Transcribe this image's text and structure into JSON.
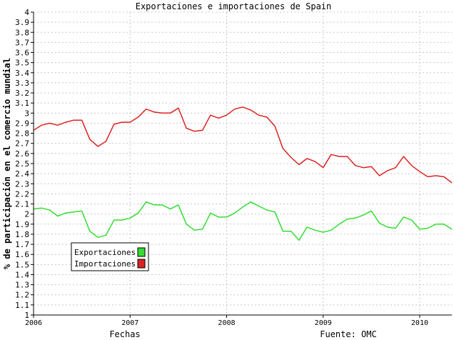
{
  "chart_data": {
    "type": "line",
    "title": "Exportaciones e importaciones de Spain",
    "xlabel": "Fechas",
    "ylabel": "% de participación en el comercio mundial",
    "source": "Fuente: OMC",
    "x_tick_labels": [
      "2006",
      "2007",
      "2008",
      "2009",
      "2010"
    ],
    "x_tick_positions": [
      2006,
      2007,
      2008,
      2009,
      2010
    ],
    "xlim": [
      2006,
      2010.333
    ],
    "ylim": [
      1,
      4
    ],
    "y_tick_labels": [
      "1",
      "1.1",
      "1.2",
      "1.3",
      "1.4",
      "1.5",
      "1.6",
      "1.7",
      "1.8",
      "1.9",
      "2",
      "2.1",
      "2.2",
      "2.3",
      "2.4",
      "2.5",
      "2.6",
      "2.7",
      "2.8",
      "2.9",
      "3",
      "3.1",
      "3.2",
      "3.3",
      "3.4",
      "3.5",
      "3.6",
      "3.7",
      "3.8",
      "3.9",
      "4"
    ],
    "grid": true,
    "legend_position": "lower-left",
    "x": [
      2006.0,
      2006.083,
      2006.167,
      2006.25,
      2006.333,
      2006.417,
      2006.5,
      2006.583,
      2006.667,
      2006.75,
      2006.833,
      2006.917,
      2007.0,
      2007.083,
      2007.167,
      2007.25,
      2007.333,
      2007.417,
      2007.5,
      2007.583,
      2007.667,
      2007.75,
      2007.833,
      2007.917,
      2008.0,
      2008.083,
      2008.167,
      2008.25,
      2008.333,
      2008.417,
      2008.5,
      2008.583,
      2008.667,
      2008.75,
      2008.833,
      2008.917,
      2009.0,
      2009.083,
      2009.167,
      2009.25,
      2009.333,
      2009.417,
      2009.5,
      2009.583,
      2009.667,
      2009.75,
      2009.833,
      2009.917,
      2010.0,
      2010.083,
      2010.167,
      2010.25,
      2010.333
    ],
    "series": [
      {
        "name": "Exportaciones",
        "color": "#33dd33",
        "values": [
          2.05,
          2.06,
          2.04,
          1.98,
          2.01,
          2.02,
          2.03,
          1.83,
          1.77,
          1.79,
          1.94,
          1.94,
          1.96,
          2.01,
          2.12,
          2.09,
          2.09,
          2.05,
          2.09,
          1.9,
          1.84,
          1.85,
          2.01,
          1.97,
          1.97,
          2.01,
          2.07,
          2.12,
          2.08,
          2.04,
          2.02,
          1.83,
          1.83,
          1.74,
          1.87,
          1.84,
          1.82,
          1.84,
          1.9,
          1.95,
          1.96,
          1.99,
          2.03,
          1.91,
          1.87,
          1.86,
          1.97,
          1.94,
          1.85,
          1.86,
          1.9,
          1.9,
          1.85
        ]
      },
      {
        "name": "Importaciones",
        "color": "#dd2222",
        "values": [
          2.83,
          2.88,
          2.9,
          2.88,
          2.91,
          2.93,
          2.93,
          2.74,
          2.67,
          2.72,
          2.89,
          2.91,
          2.91,
          2.96,
          3.04,
          3.01,
          3.0,
          3.0,
          3.05,
          2.85,
          2.82,
          2.83,
          2.98,
          2.95,
          2.98,
          3.04,
          3.06,
          3.03,
          2.98,
          2.96,
          2.87,
          2.65,
          2.56,
          2.49,
          2.55,
          2.52,
          2.46,
          2.59,
          2.57,
          2.57,
          2.48,
          2.46,
          2.47,
          2.38,
          2.43,
          2.46,
          2.57,
          2.48,
          2.42,
          2.37,
          2.38,
          2.37,
          2.31
        ]
      }
    ]
  }
}
